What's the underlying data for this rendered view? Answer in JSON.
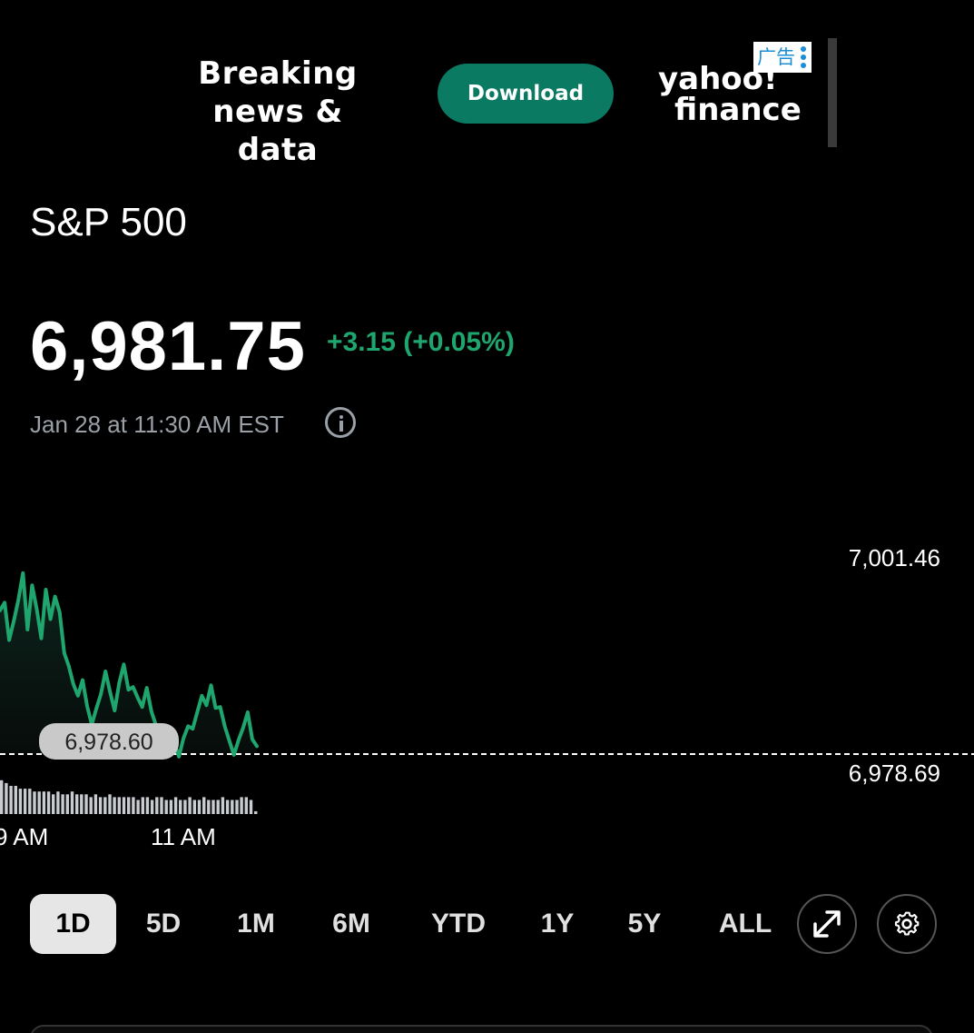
{
  "ad": {
    "headline_line1": "Breaking",
    "headline_line2": "news & data",
    "download_label": "Download",
    "brand_line1": "yahoo!",
    "brand_line2": "finance",
    "choices_label": "广告"
  },
  "quote": {
    "name": "S&P 500",
    "price": "6,981.75",
    "change": "+3.15 (+0.05%)",
    "timestamp": "Jan 28 at 11:30 AM EST",
    "change_color": "#1fa66e"
  },
  "chart_data": {
    "type": "area",
    "y_axis_labels": [
      "7,001.46",
      "6,978.69"
    ],
    "reference_line": 6978.69,
    "crosshair_value_label": "6,978.60",
    "x_tick_labels": [
      "9 AM",
      "11 AM"
    ],
    "ylim": [
      6978.69,
      7001.46
    ],
    "series": [
      {
        "values": [
          6995.2,
          6996.1,
          6991.8,
          6994.0,
          6996.4,
          6999.5,
          6993.0,
          6998.1,
          6995.4,
          6992.0,
          6997.6,
          6994.2,
          6996.8,
          6995.0,
          6990.3,
          6988.8,
          6986.7,
          6985.4,
          6987.2,
          6984.2,
          6982.1,
          6983.9,
          6985.6,
          6988.2,
          6985.8,
          6983.7,
          6986.9,
          6989.0,
          6986.1,
          6986.4,
          6985.2,
          6984.1,
          6986.3,
          6983.6,
          6982.0,
          6980.6,
          6979.4,
          6979.5,
          6980.0,
          6978.4,
          6980.5,
          6981.9,
          6981.6,
          6983.5,
          6985.4,
          6984.3,
          6986.6,
          6984.0,
          6984.1,
          6981.9,
          6980.2,
          6978.6,
          6980.3,
          6981.7,
          6983.5,
          6980.4,
          6979.6
        ]
      }
    ],
    "volume": [
      12,
      11,
      10,
      10,
      9,
      9,
      9,
      8,
      8,
      8,
      8,
      7,
      8,
      7,
      7,
      8,
      7,
      7,
      7,
      6,
      7,
      6,
      6,
      7,
      6,
      6,
      6,
      6,
      6,
      5,
      6,
      6,
      5,
      6,
      6,
      5,
      5,
      6,
      5,
      5,
      6,
      5,
      5,
      6,
      5,
      5,
      5,
      6,
      5,
      5,
      5,
      6,
      6,
      5,
      1
    ],
    "line_color": "#1fa66e",
    "volume_color": "#c8ccd0"
  },
  "ranges": {
    "items": [
      "1D",
      "5D",
      "1M",
      "6M",
      "YTD",
      "1Y",
      "5Y",
      "ALL"
    ],
    "active": "1D"
  },
  "icons": {
    "expand": "expand-icon",
    "settings": "gear-icon",
    "info": "info-icon"
  }
}
